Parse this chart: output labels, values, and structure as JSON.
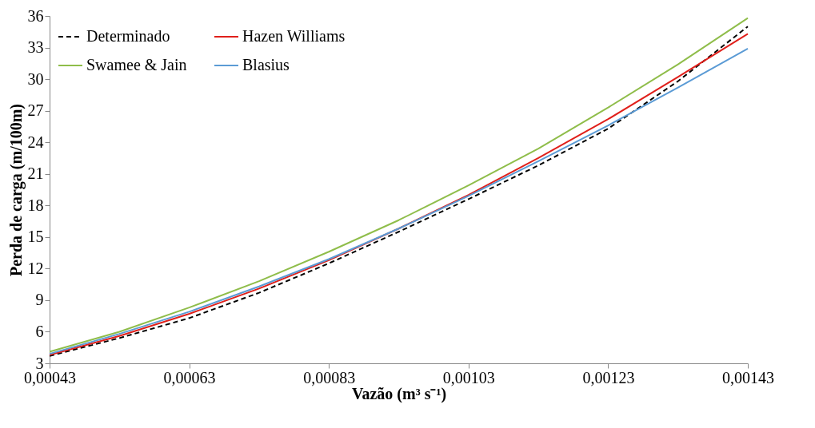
{
  "chart_data": {
    "type": "line",
    "xlabel": "Vazão (m³ s⁻¹)",
    "ylabel": "Perda de carga (m/100m)",
    "x": [
      0.00043,
      0.00053,
      0.00063,
      0.00073,
      0.00083,
      0.00093,
      0.00103,
      0.00113,
      0.00123,
      0.00133,
      0.00143
    ],
    "xlim": [
      0.00043,
      0.00143
    ],
    "xticks": [
      {
        "value": 0.00043,
        "label": "0,00043"
      },
      {
        "value": 0.00063,
        "label": "0,00063"
      },
      {
        "value": 0.00083,
        "label": "0,00083"
      },
      {
        "value": 0.00103,
        "label": "0,00103"
      },
      {
        "value": 0.00123,
        "label": "0,00123"
      },
      {
        "value": 0.00143,
        "label": "0,00143"
      }
    ],
    "ylim": [
      3,
      36
    ],
    "yticks": [
      3,
      6,
      9,
      12,
      15,
      18,
      21,
      24,
      27,
      30,
      33,
      36
    ],
    "grid": false,
    "legend": "top left",
    "marker": "none",
    "series": [
      {
        "name": "Determinado",
        "color": "#000000",
        "line_style": "dashed",
        "values": [
          3.7,
          5.4,
          7.3,
          9.7,
          12.5,
          15.5,
          18.6,
          21.8,
          25.3,
          29.8,
          35.0
        ]
      },
      {
        "name": "Hazen Williams",
        "color": "#e0201b",
        "line_style": "solid",
        "values": [
          3.8,
          5.6,
          7.7,
          10.1,
          12.8,
          15.8,
          19.0,
          22.5,
          26.2,
          30.2,
          34.3
        ]
      },
      {
        "name": "Swamee & Jain",
        "color": "#8fbd4a",
        "line_style": "solid",
        "values": [
          4.1,
          6.0,
          8.3,
          10.8,
          13.6,
          16.6,
          19.9,
          23.4,
          27.3,
          31.4,
          35.8
        ]
      },
      {
        "name": "Blasius",
        "color": "#5b9bd5",
        "line_style": "solid",
        "values": [
          3.9,
          5.8,
          7.9,
          10.3,
          12.9,
          15.8,
          18.9,
          22.2,
          25.6,
          29.2,
          32.9
        ]
      }
    ]
  }
}
